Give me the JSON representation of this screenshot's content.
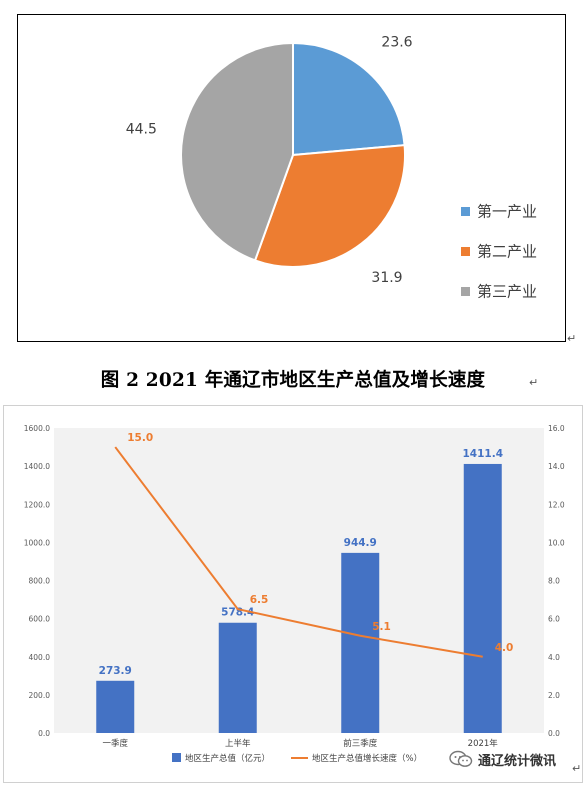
{
  "figure_title": "图 2    2021 年通辽市地区生产总值及增长速度",
  "watermark_text": "通辽统计微讯",
  "chart_data": [
    {
      "type": "pie",
      "labels": [
        "第一产业",
        "第二产业",
        "第三产业"
      ],
      "values": [
        23.6,
        31.9,
        44.5
      ],
      "value_labels": [
        "23.6",
        "31.9",
        "44.5"
      ],
      "colors": [
        "#5b9bd5",
        "#ed7d31",
        "#a5a5a5"
      ],
      "legend_position": "right",
      "start_angle": "12 o'clock, clockwise"
    },
    {
      "type": "bar",
      "categories": [
        "一季度",
        "上半年",
        "前三季度",
        "2021年"
      ],
      "series": [
        {
          "name": "地区生产总值（亿元）",
          "type": "bar",
          "axis": "left",
          "values": [
            273.9,
            578.4,
            944.9,
            1411.4
          ],
          "labels": [
            "273.9",
            "578.4",
            "944.9",
            "1411.4"
          ],
          "color": "#4472c4"
        },
        {
          "name": "地区生产总值增长速度（%）",
          "type": "line",
          "axis": "right",
          "values": [
            15.0,
            6.5,
            5.1,
            4.0
          ],
          "labels": [
            "15.0",
            "6.5",
            "5.1",
            "4.0"
          ],
          "color": "#ed7d31"
        }
      ],
      "y_left": {
        "min": 0,
        "max": 1600,
        "step": 200,
        "tick_labels": [
          "0.0",
          "200.0",
          "400.0",
          "600.0",
          "800.0",
          "1000.0",
          "1200.0",
          "1400.0",
          "1600.0"
        ]
      },
      "y_right": {
        "min": 0,
        "max": 16,
        "step": 2,
        "tick_labels": [
          "0.0",
          "2.0",
          "4.0",
          "6.0",
          "8.0",
          "10.0",
          "12.0",
          "14.0",
          "16.0"
        ]
      },
      "grid": false,
      "plot_background": "#f2f2f2",
      "legend_position": "bottom"
    }
  ]
}
